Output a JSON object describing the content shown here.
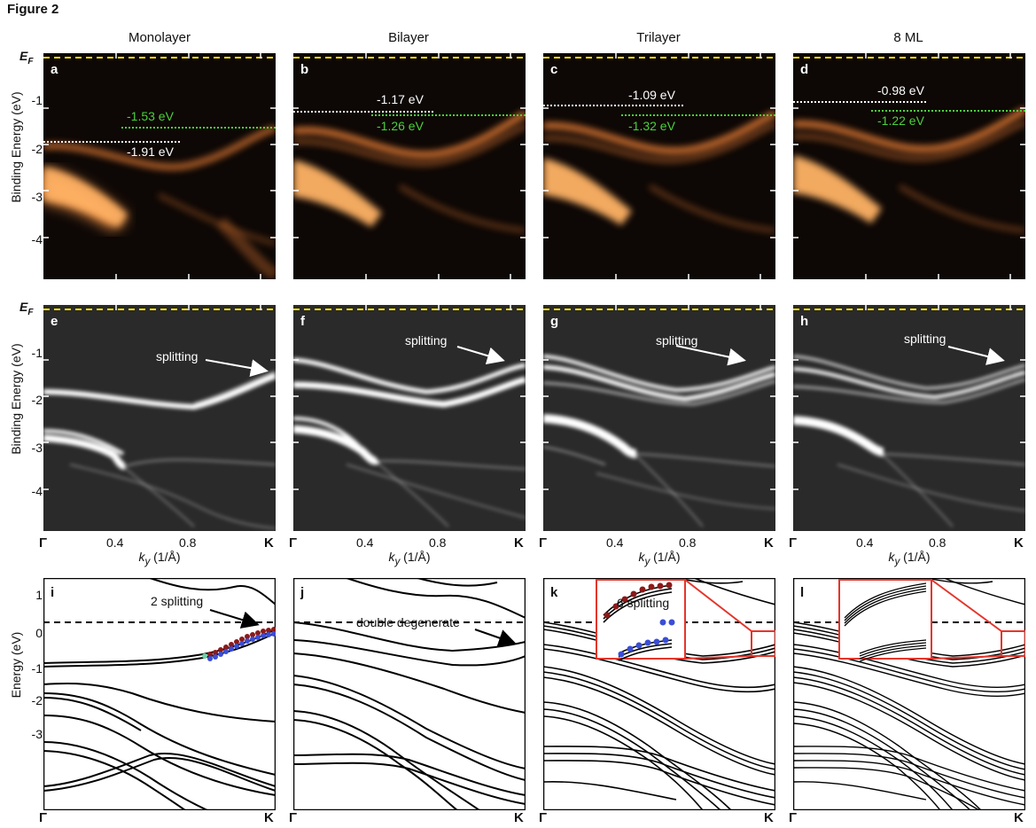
{
  "figure_title": "Figure 2",
  "columns": [
    "Monolayer",
    "Bilayer",
    "Trilayer",
    "8 ML"
  ],
  "ef_label": "E",
  "ef_sub": "F",
  "y_label_arpes": "Binding Energy (eV)",
  "y_label_calc": "Energy (eV)",
  "y_ticks_arpes": [
    "-1",
    "-2",
    "-3",
    "-4"
  ],
  "y_ticks_calc": [
    "1",
    "0",
    "-1",
    "-2",
    "-3"
  ],
  "x_ticks": [
    "Γ",
    "0.4",
    "0.8",
    "K"
  ],
  "x_sym": [
    "Γ",
    "K"
  ],
  "x_label": "k",
  "x_label_sub": "y",
  "x_label_unit": " (1/Å)",
  "panel_letters": [
    "a",
    "b",
    "c",
    "d",
    "e",
    "f",
    "g",
    "h",
    "i",
    "j",
    "k",
    "l"
  ],
  "energy_labels": [
    {
      "white": "-1.91 eV",
      "green": "-1.53 eV"
    },
    {
      "white": "-1.17 eV",
      "green": "-1.26 eV"
    },
    {
      "white": "-1.09 eV",
      "green": "-1.32 eV"
    },
    {
      "white": "-0.98 eV",
      "green": "-1.22 eV"
    }
  ],
  "splitting_label": "splitting",
  "calc_annotations": {
    "i": "2 splitting",
    "j": "double degenerate",
    "k": "6 splitting"
  },
  "colors": {
    "arpes_bg": "#0d0705",
    "arpes_band": "#ff8a3a",
    "ef_line": "#f5e100",
    "green_label": "#4bd13b",
    "inset_frame": "#e5352b",
    "dot_red": "#8b1a1a",
    "dot_blue": "#3a4ed6"
  }
}
